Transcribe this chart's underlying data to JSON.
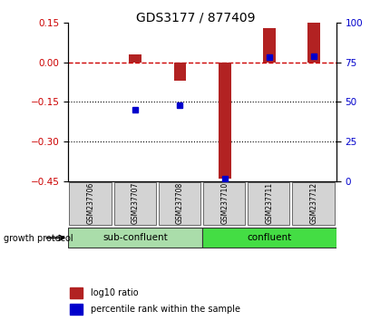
{
  "title": "GDS3177 / 877409",
  "samples": [
    "GSM237706",
    "GSM237707",
    "GSM237708",
    "GSM237710",
    "GSM237711",
    "GSM237712"
  ],
  "log10_ratio": [
    0.0,
    0.03,
    -0.07,
    -0.44,
    0.13,
    0.15
  ],
  "percentile_rank": [
    null,
    45,
    48,
    2,
    78,
    79
  ],
  "ylim_left": [
    -0.45,
    0.15
  ],
  "ylim_right": [
    0,
    100
  ],
  "yticks_left": [
    -0.45,
    -0.3,
    -0.15,
    0.0,
    0.15
  ],
  "yticks_right": [
    0,
    25,
    50,
    75,
    100
  ],
  "hlines": [
    -0.15,
    -0.3
  ],
  "bar_color_red": "#b22222",
  "bar_color_blue": "#0000cc",
  "dashed_line_color": "#cc0000",
  "group_info": [
    {
      "range": [
        0,
        3
      ],
      "label": "sub-confluent",
      "color": "#aaddaa"
    },
    {
      "range": [
        3,
        6
      ],
      "label": "confluent",
      "color": "#44dd44"
    }
  ],
  "growth_protocol_label": "growth protocol",
  "legend_items": [
    "log10 ratio",
    "percentile rank within the sample"
  ],
  "bg_color": "#ffffff",
  "plot_bg": "#ffffff",
  "tick_label_color_left": "#cc0000",
  "tick_label_color_right": "#0000cc",
  "red_bar_width": 0.28,
  "blue_marker_size": 5.0
}
